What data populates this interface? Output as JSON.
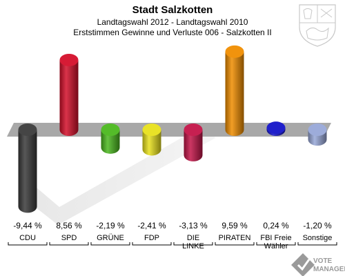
{
  "header": {
    "title": "Stadt Salzkotten",
    "subtitle_1": "Landtagswahl 2012 - Landtagswahl 2010",
    "subtitle_2": "Erststimmen Gewinne und Verluste 006 - Salzkotten II"
  },
  "chart_data": {
    "type": "bar",
    "title": "Stadt Salzkotten",
    "subtitle": "Landtagswahl 2012 - Landtagswahl 2010",
    "caption": "Erststimmen Gewinne und Verluste 006 - Salzkotten II",
    "xlabel": "",
    "ylabel": "",
    "categories": [
      [
        "CDU"
      ],
      [
        "SPD"
      ],
      [
        "GRÜNE"
      ],
      [
        "FDP"
      ],
      [
        "DIE",
        "LINKE"
      ],
      [
        "PIRATEN"
      ],
      [
        "FBI Freie",
        "Wähler"
      ],
      [
        "Sonstige"
      ]
    ],
    "values": [
      -9.44,
      8.56,
      -2.19,
      -2.41,
      -3.13,
      9.59,
      0.24,
      -1.2
    ],
    "value_labels": [
      "-9,44 %",
      "8,56 %",
      "-2,19 %",
      "-2,41 %",
      "-3,13 %",
      "9,59 %",
      "0,24 %",
      "-1,20 %"
    ],
    "colors": [
      "#3b3b3b",
      "#d40f2a",
      "#4bb81e",
      "#e8e01c",
      "#c31448",
      "#f08d00",
      "#1414c8",
      "#98a8d8"
    ],
    "ylim": [
      -10,
      10
    ],
    "grid": false,
    "legend": "none"
  },
  "branding": {
    "coat_of_arms": "coat-of-arms-icon",
    "logo_text": "VOTE MANAGER"
  },
  "colors": {
    "baseline_band": "#a8a8a8",
    "logo_gray": "#9a9a9a"
  }
}
